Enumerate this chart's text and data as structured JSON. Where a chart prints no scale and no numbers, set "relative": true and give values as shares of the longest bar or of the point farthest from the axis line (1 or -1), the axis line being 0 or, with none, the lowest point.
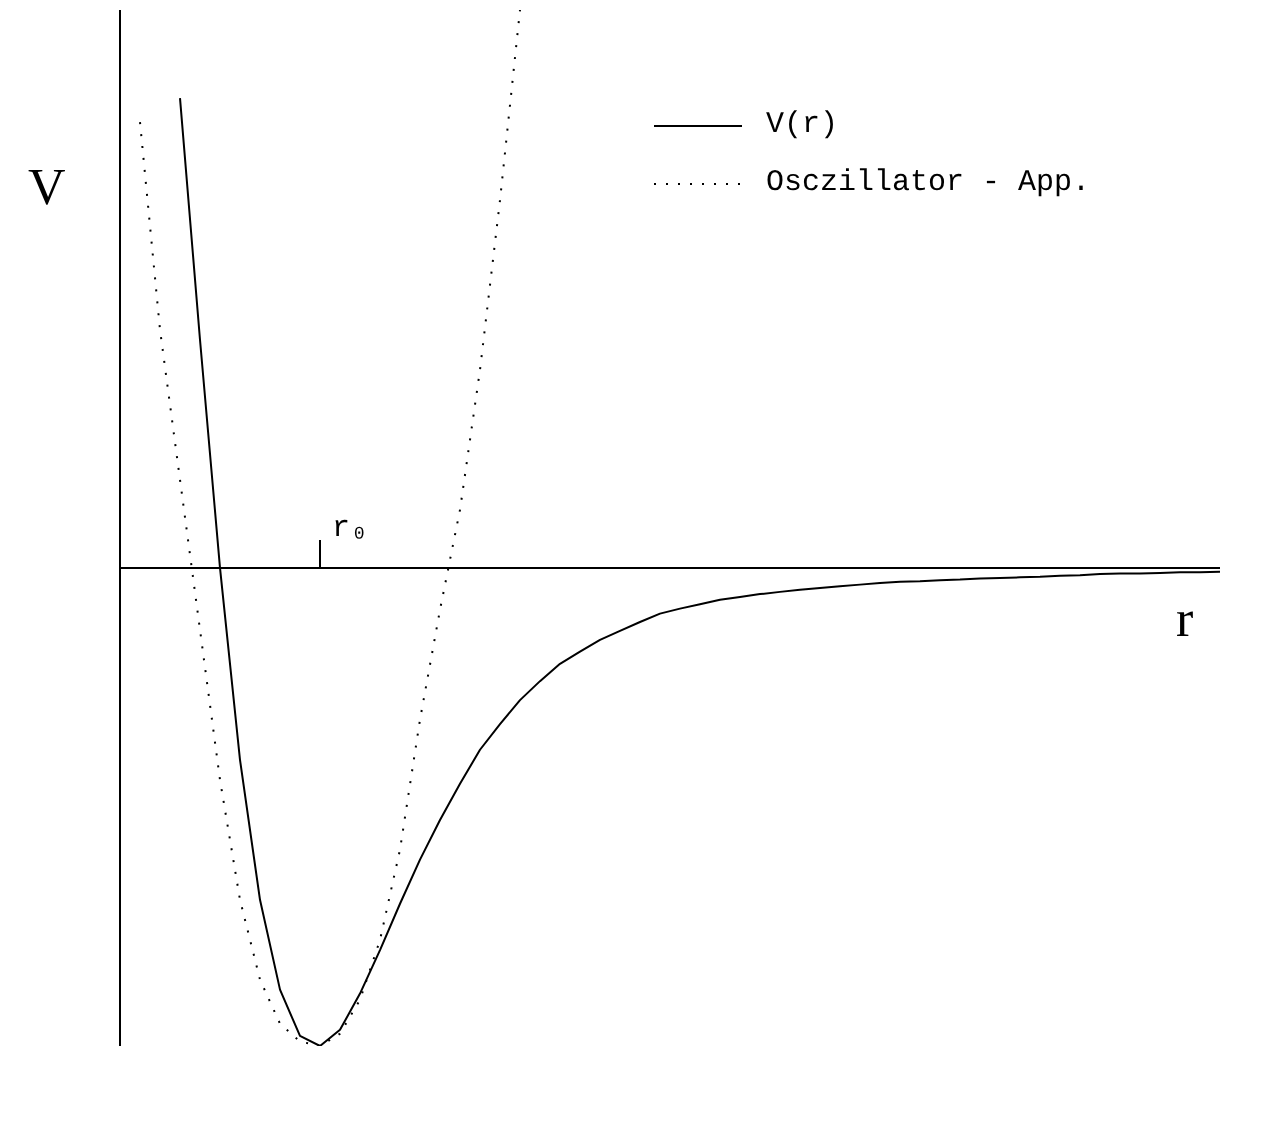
{
  "chart_data": {
    "type": "line",
    "xlabel": "r",
    "ylabel": "V",
    "relative": true,
    "legend": "top right",
    "grid": false,
    "categories": [
      null,
      null,
      null,
      null,
      null,
      null,
      null,
      null,
      null,
      null,
      null,
      null,
      null,
      null,
      null,
      null,
      null,
      null,
      null,
      null,
      null,
      null,
      null,
      null,
      null,
      null,
      null,
      null,
      null,
      null,
      null,
      null,
      null,
      null,
      null,
      null,
      null,
      null,
      null,
      null,
      null,
      null,
      null,
      null,
      null,
      null,
      null,
      null,
      null,
      null,
      null,
      null,
      null,
      null,
      null,
      null
    ],
    "series": [
      {
        "name": "V(r)",
        "color": "#000000",
        "line_style": "solid",
        "values": [
          null,
          null,
          null,
          0.842,
          0.409,
          0,
          -0.344,
          -0.595,
          -0.756,
          -0.839,
          -0.857,
          -0.828,
          -0.763,
          -0.685,
          -0.602,
          -0.523,
          -0.452,
          -0.387,
          -0.326,
          -0.28,
          -0.237,
          -0.203,
          -0.172,
          -0.15,
          -0.129,
          -0.113,
          -0.097,
          -0.082,
          -0.073,
          -0.065,
          -0.057,
          -0.052,
          -0.047,
          -0.043,
          -0.039,
          -0.036,
          -0.033,
          -0.03,
          -0.027,
          -0.025,
          -0.024,
          -0.022,
          -0.021,
          -0.019,
          -0.018,
          -0.017,
          -0.016,
          -0.014,
          -0.013,
          -0.011,
          -0.01,
          -0.01,
          -0.009,
          -0.008,
          -0.008,
          -0.007
        ]
      },
      {
        "name": "Osczillator - App.",
        "color": "#000000",
        "line_style": "dotted",
        "values": [
          null,
          0.799,
          0.427,
          0.158,
          -0.111,
          -0.38,
          -0.595,
          -0.738,
          -0.817,
          -0.849,
          -0.857,
          -0.835,
          -0.774,
          -0.667,
          -0.505,
          -0.272,
          -0.075,
          0.104,
          0.355,
          0.659,
          1,
          null,
          null,
          null,
          null,
          null,
          null,
          null,
          null,
          null,
          null,
          null,
          null,
          null,
          null,
          null,
          null,
          null,
          null,
          null,
          null,
          null,
          null,
          null,
          null,
          null,
          null,
          null,
          null,
          null,
          null,
          null,
          null,
          null,
          null,
          null
        ]
      }
    ],
    "annotations": [
      "r₀"
    ]
  }
}
